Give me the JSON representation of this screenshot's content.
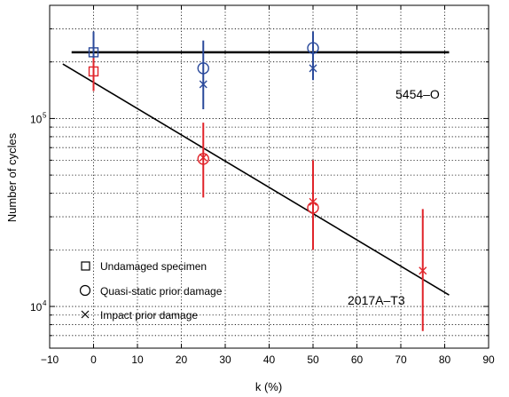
{
  "chart_data": {
    "type": "scatter",
    "title": "",
    "xlabel": "k (%)",
    "ylabel": "Number of cycles",
    "xlim": [
      -10,
      90
    ],
    "ylim": [
      6000,
      400000
    ],
    "yscale": "log",
    "grid": true,
    "legend_placement": "bottom-left",
    "x_ticks": [
      -10,
      0,
      10,
      20,
      30,
      40,
      50,
      60,
      70,
      80,
      90
    ],
    "x_tick_labels": [
      "−10",
      "0",
      "10",
      "20",
      "30",
      "40",
      "50",
      "60",
      "70",
      "80",
      "90"
    ],
    "y_major_ticks": [
      10000,
      100000
    ],
    "y_major_tick_labels": [
      "10",
      "10"
    ],
    "y_major_tick_exponents": [
      "4",
      "5"
    ],
    "colors": {
      "5454-O": "#2b4a9b",
      "2017A-T3": "#e0242a",
      "fit": "#000000"
    },
    "legend": [
      {
        "marker": "square",
        "label": "Undamaged specimen"
      },
      {
        "marker": "circle",
        "label": "Quasi-static prior damage"
      },
      {
        "marker": "x",
        "label": "Impact prior damage"
      }
    ],
    "annotations": [
      {
        "text": "5454–O",
        "x": 60,
        "y": 160000
      },
      {
        "text": "2017A–T3",
        "x": 70,
        "y": 12500
      }
    ],
    "materials": [
      {
        "name": "5454–O",
        "color": "#2b4a9b",
        "fit_line": [
          [
            -5,
            225000
          ],
          [
            81,
            225000
          ]
        ],
        "points": [
          {
            "marker": "square",
            "x": 0,
            "y": 225000,
            "ymin": 180000,
            "ymax": 290000
          },
          {
            "marker": "circle",
            "x": 25,
            "y": 185000,
            "ymin": 112000,
            "ymax": 260000
          },
          {
            "marker": "x",
            "x": 25,
            "y": 152000
          },
          {
            "marker": "circle",
            "x": 50,
            "y": 237000,
            "ymin": 160000,
            "ymax": 290000
          },
          {
            "marker": "x",
            "x": 50,
            "y": 185000
          }
        ]
      },
      {
        "name": "2017A–T3",
        "color": "#e0242a",
        "fit_line": [
          [
            -7,
            195000
          ],
          [
            81,
            11500
          ]
        ],
        "points": [
          {
            "marker": "square",
            "x": 0,
            "y": 178000,
            "ymin": 140000,
            "ymax": 210000
          },
          {
            "marker": "circle",
            "x": 25,
            "y": 61000,
            "ymin": 38000,
            "ymax": 95000
          },
          {
            "marker": "x",
            "x": 25,
            "y": 62000
          },
          {
            "marker": "circle",
            "x": 50,
            "y": 33500,
            "ymin": 20000,
            "ymax": 60000
          },
          {
            "marker": "x",
            "x": 50,
            "y": 36000
          },
          {
            "marker": "x",
            "x": 75,
            "y": 15500,
            "ymin": 7400,
            "ymax": 33000
          }
        ]
      }
    ]
  }
}
